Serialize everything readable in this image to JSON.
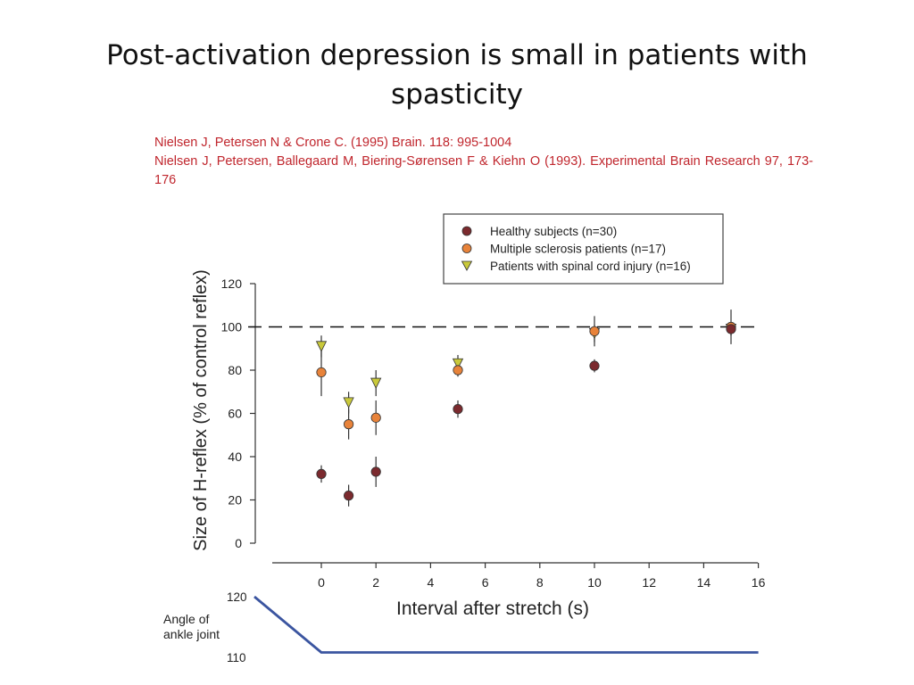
{
  "slide": {
    "title": "Post-activation depression is small in patients with spasticity",
    "references": [
      "Nielsen J, Petersen N & Crone C. (1995) Brain. 118: 995-1004",
      "Nielsen J, Petersen, Ballegaard M, Biering-Sørensen F & Kiehn O (1993). Experimental Brain Research 97, 173-176"
    ]
  },
  "colors": {
    "healthy": "#7b2a2e",
    "ms": "#e8833a",
    "sci": "#c9c93a",
    "angle_line": "#3b55a0",
    "reference_red": "#c0262d"
  },
  "chart_data": [
    {
      "type": "scatter",
      "xlabel": "Interval after stretch (s)",
      "ylabel": "Size of H-reflex (% of control reflex)",
      "xlim": [
        -1.8,
        16
      ],
      "ylim": [
        0,
        120
      ],
      "x_ticks": [
        0,
        2,
        4,
        6,
        8,
        10,
        12,
        14,
        16
      ],
      "y_ticks": [
        0,
        20,
        40,
        60,
        80,
        100,
        120
      ],
      "reference_line": {
        "y": 100,
        "style": "dashed"
      },
      "legend": {
        "position": "top-right"
      },
      "series": [
        {
          "name": "Healthy subjects (n=30)",
          "marker": "circle",
          "color_key": "healthy",
          "points": [
            {
              "x": 0,
              "y": 32,
              "err": 4
            },
            {
              "x": 1,
              "y": 22,
              "err": 5
            },
            {
              "x": 2,
              "y": 33,
              "err": 7
            },
            {
              "x": 5,
              "y": 62,
              "err": 4
            },
            {
              "x": 10,
              "y": 82,
              "err": 3
            },
            {
              "x": 15,
              "y": 99,
              "err": 3
            }
          ]
        },
        {
          "name": "Multiple sclerosis patients (n=17)",
          "marker": "circle",
          "color_key": "ms",
          "points": [
            {
              "x": 0,
              "y": 79,
              "err": 11
            },
            {
              "x": 1,
              "y": 55,
              "err": 7
            },
            {
              "x": 2,
              "y": 58,
              "err": 8
            },
            {
              "x": 5,
              "y": 80,
              "err": 3
            },
            {
              "x": 10,
              "y": 98,
              "err": 7
            },
            {
              "x": 15,
              "y": 100,
              "err": 8
            }
          ]
        },
        {
          "name": "Patients with spinal cord injury (n=16)",
          "marker": "triangle-down",
          "color_key": "sci",
          "points": [
            {
              "x": 0,
              "y": 91,
              "err": 5
            },
            {
              "x": 1,
              "y": 65,
              "err": 5
            },
            {
              "x": 2,
              "y": 74,
              "err": 6
            },
            {
              "x": 5,
              "y": 83,
              "err": 4
            },
            {
              "x": 10,
              "y": 97,
              "err": 4
            },
            {
              "x": 15,
              "y": 99,
              "err": 3
            }
          ]
        }
      ]
    },
    {
      "type": "line",
      "label": "Angle of ankle joint",
      "y_ticks": [
        110,
        120
      ],
      "points": [
        {
          "x": -1.8,
          "y": 120
        },
        {
          "x": 0,
          "y": 110
        },
        {
          "x": 16,
          "y": 110
        }
      ]
    }
  ]
}
